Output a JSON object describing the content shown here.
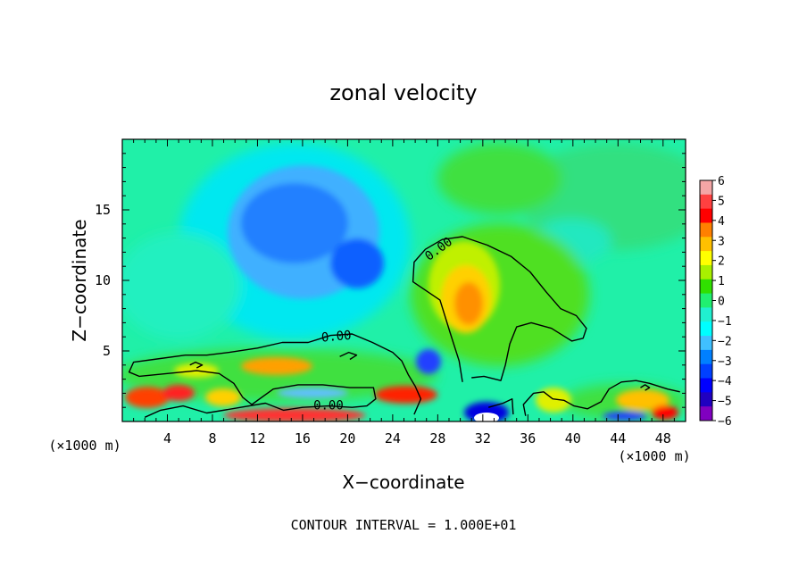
{
  "chart_data": {
    "type": "heatmap",
    "title": "zonal velocity",
    "xlabel": "X−coordinate",
    "ylabel": "Z−coordinate",
    "x_unit_left": "(×1000 m)",
    "x_unit_right": "(×1000 m)",
    "footnote": "CONTOUR INTERVAL = 1.000E+01",
    "xlim": [
      0,
      50
    ],
    "ylim": [
      0,
      20
    ],
    "x_ticks": [
      4,
      8,
      12,
      16,
      20,
      24,
      28,
      32,
      36,
      40,
      44,
      48
    ],
    "x_tick_labels": [
      "4",
      "8",
      "12",
      "16",
      "20",
      "24",
      "28",
      "32",
      "36",
      "40",
      "44",
      "48"
    ],
    "y_ticks": [
      5,
      10,
      15
    ],
    "y_tick_labels": [
      "5",
      "10",
      "15"
    ],
    "colorbar": {
      "min": -6,
      "max": 6,
      "tick_values": [
        6,
        5,
        4,
        3,
        2,
        1,
        0,
        -1,
        -2,
        -3,
        -4,
        -5,
        -6
      ],
      "tick_labels": [
        "6",
        "5",
        "4",
        "3",
        "2",
        "1",
        "0",
        "−1",
        "−2",
        "−3",
        "−4",
        "−5",
        "−6"
      ],
      "colors": [
        "#f4a6a6",
        "#ff4040",
        "#ff0000",
        "#ff8000",
        "#ffc000",
        "#ffff00",
        "#a8f000",
        "#30e000",
        "#20f070",
        "#20f0d0",
        "#00ffff",
        "#40c0ff",
        "#0080ff",
        "#0040ff",
        "#0000ff",
        "#2000c0",
        "#8000c0"
      ]
    },
    "contour_labels": [
      {
        "text": "0.00",
        "x": 28.1,
        "y": 12.2,
        "angle": -36
      },
      {
        "text": "0.00",
        "x": 19.0,
        "y": 6.0,
        "angle": -5
      },
      {
        "text": "0.00",
        "x": 18.3,
        "y": 1.1,
        "angle": 0
      }
    ],
    "contours": [
      [
        [
          25.9,
          0.5
        ],
        [
          26.5,
          1.6
        ],
        [
          26.0,
          2.5
        ],
        [
          25.4,
          3.3
        ],
        [
          24.8,
          4.3
        ],
        [
          24.0,
          4.9
        ],
        [
          22.2,
          5.6
        ],
        [
          20.4,
          6.2
        ],
        [
          18.5,
          6.1
        ],
        [
          16.5,
          5.6
        ],
        [
          14.2,
          5.6
        ],
        [
          12.0,
          5.2
        ],
        [
          9.5,
          4.9
        ],
        [
          7.5,
          4.7
        ],
        [
          5.6,
          4.7
        ],
        [
          2.8,
          4.4
        ],
        [
          1.0,
          4.2
        ],
        [
          0.6,
          3.5
        ],
        [
          1.5,
          3.2
        ],
        [
          4.0,
          3.4
        ],
        [
          6.6,
          3.6
        ],
        [
          8.6,
          3.4
        ],
        [
          9.9,
          2.7
        ],
        [
          10.7,
          1.7
        ],
        [
          11.5,
          1.2
        ],
        [
          13.4,
          2.3
        ],
        [
          15.6,
          2.6
        ],
        [
          17.8,
          2.6
        ],
        [
          20.2,
          2.4
        ],
        [
          22.3,
          2.4
        ],
        [
          22.5,
          1.6
        ],
        [
          21.7,
          1.1
        ],
        [
          20.4,
          1.0
        ],
        [
          18.3,
          1.1
        ],
        [
          16.0,
          1.0
        ],
        [
          14.3,
          0.8
        ],
        [
          12.7,
          1.3
        ],
        [
          10.5,
          1.0
        ],
        [
          7.5,
          0.6
        ],
        [
          5.4,
          1.1
        ],
        [
          3.4,
          0.8
        ],
        [
          2.0,
          0.3
        ]
      ],
      [
        [
          30.2,
          2.8
        ],
        [
          29.9,
          4.3
        ],
        [
          29.1,
          6.3
        ],
        [
          28.2,
          8.6
        ],
        [
          25.8,
          9.9
        ],
        [
          25.9,
          11.3
        ],
        [
          26.9,
          12.2
        ],
        [
          28.4,
          12.9
        ],
        [
          30.2,
          13.1
        ],
        [
          32.4,
          12.5
        ],
        [
          34.5,
          11.7
        ],
        [
          36.2,
          10.6
        ],
        [
          37.6,
          9.2
        ],
        [
          38.9,
          8.0
        ],
        [
          40.3,
          7.5
        ],
        [
          41.2,
          6.6
        ],
        [
          40.9,
          5.9
        ],
        [
          39.9,
          5.7
        ],
        [
          38.1,
          6.6
        ],
        [
          36.3,
          7.0
        ],
        [
          35.0,
          6.7
        ],
        [
          34.4,
          5.5
        ],
        [
          34.0,
          4.0
        ],
        [
          33.6,
          2.9
        ],
        [
          32.1,
          3.2
        ],
        [
          31.0,
          3.1
        ]
      ],
      [
        [
          35.8,
          0.4
        ],
        [
          35.6,
          1.2
        ],
        [
          36.5,
          2.0
        ],
        [
          37.4,
          2.1
        ],
        [
          38.2,
          1.6
        ],
        [
          39.2,
          1.5
        ],
        [
          40.1,
          1.1
        ],
        [
          41.3,
          0.9
        ],
        [
          42.5,
          1.4
        ],
        [
          43.2,
          2.3
        ],
        [
          44.3,
          2.8
        ],
        [
          45.6,
          2.9
        ],
        [
          46.8,
          2.7
        ],
        [
          48.4,
          2.3
        ],
        [
          49.5,
          2.1
        ]
      ],
      [
        [
          32.5,
          1.0
        ],
        [
          33.8,
          1.3
        ],
        [
          34.6,
          1.6
        ],
        [
          34.7,
          0.5
        ]
      ],
      [
        [
          19.3,
          4.6
        ],
        [
          20.1,
          4.9
        ],
        [
          20.8,
          4.7
        ],
        [
          20.2,
          4.4
        ]
      ],
      [
        [
          46.0,
          2.4
        ],
        [
          46.4,
          2.6
        ],
        [
          46.8,
          2.4
        ],
        [
          46.4,
          2.2
        ]
      ],
      [
        [
          6.0,
          4.0
        ],
        [
          6.5,
          4.2
        ],
        [
          7.1,
          4.0
        ],
        [
          6.6,
          3.8
        ]
      ]
    ]
  }
}
